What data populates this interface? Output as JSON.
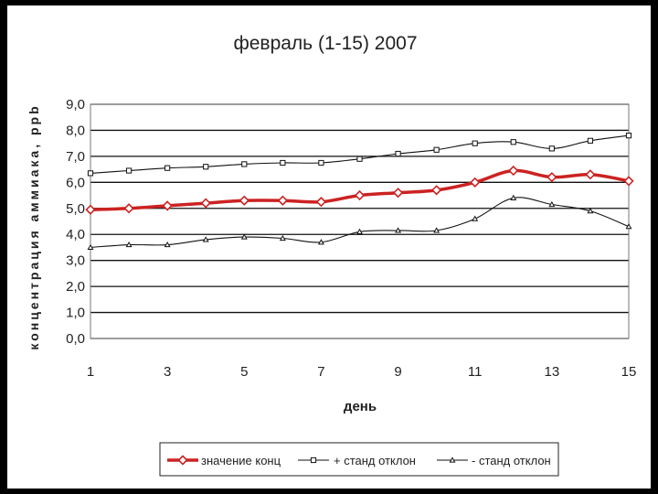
{
  "chart_data": {
    "type": "line",
    "title": "февраль (1-15) 2007",
    "xlabel": "день",
    "ylabel": "концентрация аммиака, ppb",
    "x": [
      1,
      2,
      3,
      4,
      5,
      6,
      7,
      8,
      9,
      10,
      11,
      12,
      13,
      14,
      15
    ],
    "x_tick_labels": [
      "1",
      "3",
      "5",
      "7",
      "9",
      "11",
      "13",
      "15"
    ],
    "y_tick_labels": [
      "0,0",
      "1,0",
      "2,0",
      "3,0",
      "4,0",
      "5,0",
      "6,0",
      "7,0",
      "8,0",
      "9,0"
    ],
    "ylim": [
      0,
      9
    ],
    "xlim": [
      1,
      15
    ],
    "grid": true,
    "legend_position": "bottom",
    "series": [
      {
        "name": "значение конц",
        "color": "#cc2222",
        "marker": "diamond",
        "values": [
          4.95,
          5.0,
          5.1,
          5.2,
          5.3,
          5.3,
          5.25,
          5.5,
          5.6,
          5.7,
          6.0,
          6.45,
          6.2,
          6.3,
          6.05
        ]
      },
      {
        "name": "+ станд отклон",
        "color": "#111111",
        "marker": "square",
        "values": [
          6.35,
          6.45,
          6.55,
          6.6,
          6.7,
          6.75,
          6.75,
          6.9,
          7.1,
          7.25,
          7.5,
          7.55,
          7.3,
          7.6,
          7.8
        ]
      },
      {
        "name": "- станд отклон",
        "color": "#111111",
        "marker": "triangle",
        "values": [
          3.5,
          3.6,
          3.6,
          3.8,
          3.9,
          3.85,
          3.7,
          4.1,
          4.15,
          4.15,
          4.6,
          5.4,
          5.15,
          4.9,
          4.3
        ]
      }
    ]
  }
}
